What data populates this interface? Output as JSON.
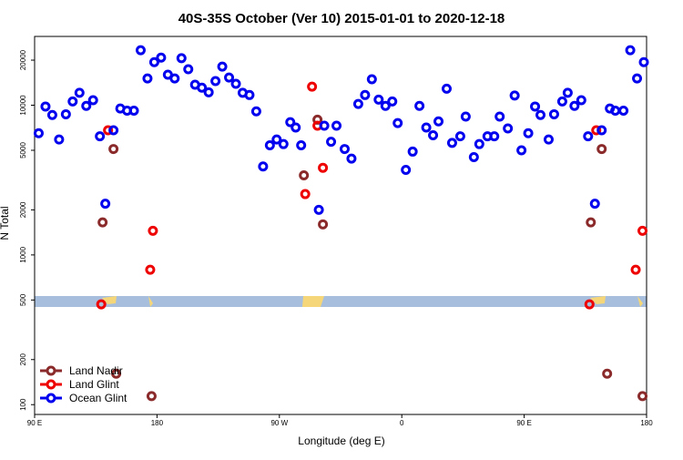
{
  "chart_data": {
    "type": "scatter",
    "title": "40S-35S October (Ver 10)   2015-01-01 to 2020-12-18",
    "xlabel": "Longitude (deg E)",
    "ylabel": "N Total",
    "log_y": true,
    "legend": "bottom left",
    "xlim": [
      90,
      540
    ],
    "ylim": [
      86,
      28800
    ],
    "xticks": [
      {
        "value": 90,
        "label": "90 E"
      },
      {
        "value": 180,
        "label": "180"
      },
      {
        "value": 270,
        "label": "90 W"
      },
      {
        "value": 360,
        "label": "0"
      },
      {
        "value": 450,
        "label": "90 E"
      },
      {
        "value": 540,
        "label": "180"
      }
    ],
    "yticks": [
      100,
      200,
      500,
      1000,
      2000,
      5000,
      10000,
      20000
    ],
    "series": [
      {
        "name": "Land Nadir",
        "color": "#8b2a2a",
        "x": [
          140,
          148,
          150,
          176,
          288,
          298,
          302,
          499,
          507,
          511,
          537
        ],
        "values": [
          1650,
          5100,
          161,
          114,
          3400,
          8000,
          1600,
          1650,
          5100,
          161,
          114
        ]
      },
      {
        "name": "Land Glint",
        "color": "#ee0000",
        "x": [
          139,
          144,
          175,
          177,
          289,
          294,
          298,
          302,
          498,
          503,
          532,
          537
        ],
        "values": [
          468,
          6800,
          796,
          1450,
          2550,
          13300,
          7300,
          3820,
          468,
          6800,
          796,
          1450
        ]
      },
      {
        "name": "Ocean Glint",
        "color": "#0000ee",
        "x": [
          93,
          98,
          103,
          108,
          113,
          118,
          123,
          128,
          133,
          138,
          142,
          148,
          153,
          158,
          163,
          168,
          173,
          178,
          183,
          188,
          193,
          198,
          203,
          208,
          213,
          218,
          223,
          228,
          233,
          238,
          243,
          248,
          253,
          258,
          263,
          268,
          273,
          278,
          282,
          286,
          299,
          303,
          308,
          312,
          318,
          323,
          328,
          333,
          338,
          343,
          348,
          353,
          357,
          363,
          368,
          373,
          378,
          383,
          387,
          393,
          397,
          403,
          407,
          413,
          417,
          423,
          428,
          432,
          438,
          443,
          448,
          453,
          458,
          462,
          468,
          472,
          478,
          482,
          487,
          492,
          497,
          502,
          507,
          513,
          517,
          523,
          528,
          533,
          538
        ],
        "values": [
          6500,
          9800,
          8600,
          5900,
          8700,
          10600,
          12100,
          9900,
          10800,
          6200,
          2200,
          6800,
          9500,
          9200,
          9200,
          23300,
          15100,
          19400,
          20800,
          16000,
          15100,
          20600,
          17400,
          13700,
          13100,
          12200,
          14500,
          18100,
          15300,
          13900,
          12100,
          11700,
          9100,
          3900,
          5400,
          5900,
          5500,
          7700,
          7100,
          5400,
          2000,
          7300,
          5700,
          7300,
          5100,
          4400,
          10200,
          11700,
          14900,
          10900,
          9900,
          10600,
          7600,
          3700,
          4900,
          9900,
          7100,
          6300,
          7800,
          12900,
          5600,
          6200,
          8400,
          4500,
          5500,
          6200,
          6200,
          8400,
          7000,
          11600,
          5000,
          6500,
          9800,
          8600,
          5900,
          8700,
          10600,
          12100,
          9900,
          10800,
          6200,
          2200,
          6800,
          9500,
          9200,
          9200,
          23300,
          15100,
          19400
        ]
      }
    ]
  }
}
